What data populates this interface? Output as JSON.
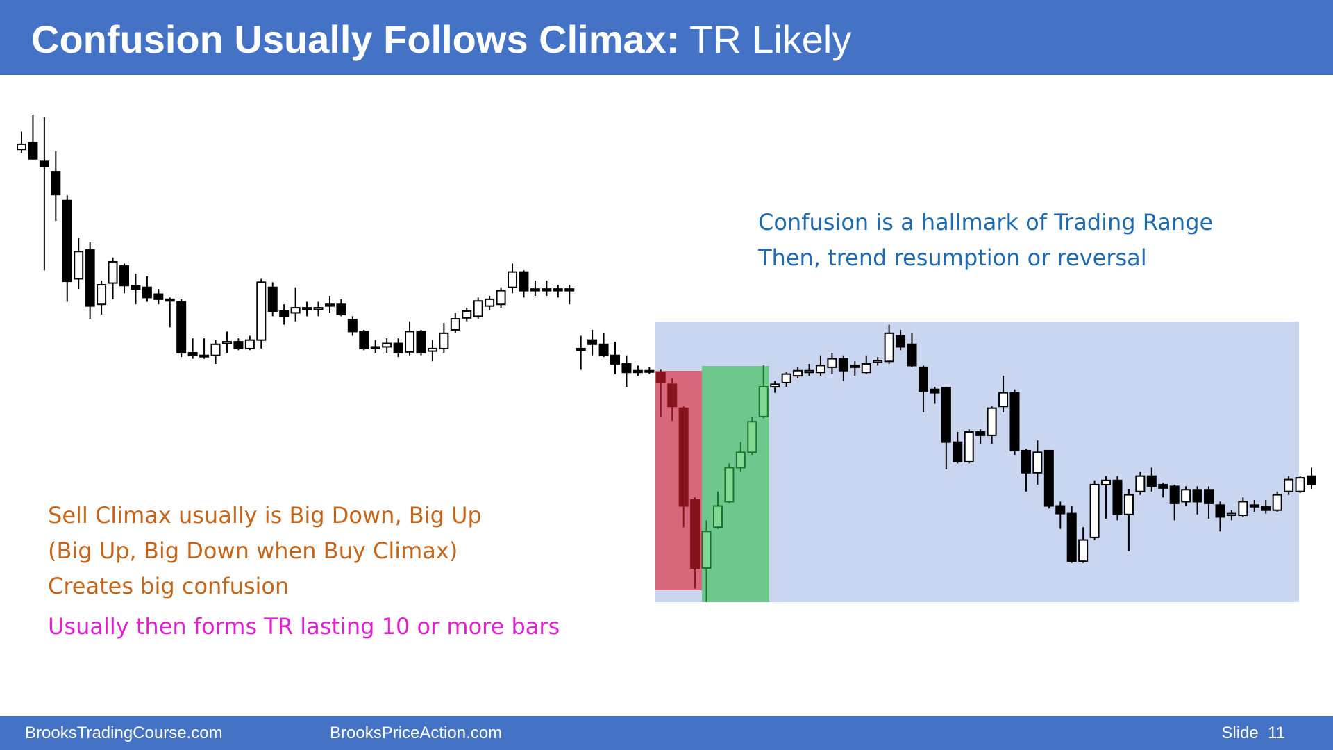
{
  "header": {
    "title_bold": "Confusion Usually Follows Climax:",
    "title_rest": "TR Likely"
  },
  "notes": {
    "range": [
      "Confusion is a hallmark of Trading Range",
      "Then, trend resumption or reversal"
    ],
    "climax": [
      "Sell Climax usually is Big Down, Big Up",
      "(Big Up, Big Down when Buy Climax)",
      "Creates big confusion"
    ],
    "result": "Usually then forms TR lasting 10 or more bars"
  },
  "footer": {
    "left": "BrooksTradingCourse.com",
    "center": "BrooksPriceAction.com",
    "slide": "Slide  11"
  },
  "chart_data": {
    "type": "candlestick",
    "open": [
      724,
      732,
      710,
      698,
      664,
      572,
      606,
      542,
      567,
      587,
      564,
      562,
      554,
      548,
      545,
      485,
      482,
      482,
      496,
      498,
      490,
      500,
      562,
      534,
      532,
      538,
      536,
      542,
      542,
      524,
      510,
      492,
      492,
      496,
      486,
      510,
      487,
      490,
      512,
      526,
      528,
      540,
      542,
      562,
      580,
      560,
      560,
      560,
      560,
      490,
      500,
      495,
      482,
      472,
      464,
      464,
      462,
      448,
      420,
      312,
      232,
      280,
      310,
      350,
      368,
      410,
      445,
      450,
      458,
      462,
      462,
      468,
      478,
      470,
      462,
      474,
      475,
      505,
      495,
      468,
      442,
      444,
      380,
      357,
      392,
      388,
      422,
      438,
      370,
      344,
      370,
      305,
      296,
      240,
      268,
      330,
      335,
      295,
      322,
      340,
      330,
      328,
      310,
      324,
      324,
      306,
      294,
      294,
      306,
      304,
      300,
      322,
      322,
      340
    ],
    "high": [
      745,
      765,
      762,
      722,
      670,
      620,
      615,
      570,
      597,
      590,
      578,
      575,
      560,
      550,
      548,
      502,
      502,
      500,
      510,
      502,
      505,
      572,
      568,
      542,
      562,
      545,
      545,
      552,
      548,
      528,
      512,
      500,
      502,
      502,
      522,
      512,
      500,
      520,
      532,
      538,
      550,
      552,
      562,
      590,
      582,
      570,
      570,
      565,
      565,
      505,
      512,
      508,
      498,
      482,
      470,
      468,
      465,
      455,
      422,
      315,
      288,
      322,
      355,
      380,
      410,
      470,
      452,
      462,
      468,
      472,
      482,
      485,
      482,
      475,
      482,
      480,
      518,
      512,
      508,
      470,
      445,
      445,
      392,
      395,
      395,
      422,
      458,
      442,
      372,
      382,
      370,
      310,
      305,
      280,
      335,
      340,
      340,
      325,
      345,
      350,
      332,
      330,
      328,
      328,
      328,
      310,
      300,
      315,
      312,
      312,
      322,
      340,
      340,
      350
    ],
    "low": [
      720,
      712,
      582,
      640,
      545,
      560,
      525,
      530,
      548,
      555,
      542,
      545,
      542,
      515,
      480,
      478,
      478,
      472,
      485,
      488,
      488,
      490,
      528,
      518,
      522,
      528,
      528,
      532,
      528,
      505,
      488,
      485,
      485,
      480,
      482,
      482,
      475,
      485,
      508,
      522,
      525,
      535,
      538,
      555,
      550,
      552,
      552,
      550,
      542,
      465,
      482,
      480,
      460,
      445,
      458,
      460,
      410,
      405,
      280,
      208,
      192,
      278,
      308,
      345,
      365,
      408,
      438,
      445,
      455,
      458,
      458,
      460,
      452,
      458,
      460,
      470,
      472,
      488,
      468,
      415,
      425,
      348,
      355,
      355,
      378,
      378,
      415,
      365,
      322,
      330,
      302,
      278,
      238,
      238,
      265,
      290,
      288,
      252,
      318,
      322,
      315,
      288,
      305,
      295,
      290,
      275,
      288,
      292,
      298,
      296,
      298,
      318,
      320,
      325
    ],
    "close": [
      730,
      713,
      704,
      671,
      569,
      604,
      540,
      565,
      592,
      564,
      560,
      550,
      548,
      546,
      485,
      482,
      482,
      495,
      498,
      490,
      500,
      568,
      534,
      528,
      538,
      536,
      538,
      540,
      530,
      510,
      490,
      490,
      496,
      485,
      510,
      485,
      490,
      508,
      525,
      534,
      546,
      548,
      558,
      580,
      558,
      558,
      558,
      558,
      558,
      488,
      495,
      482,
      472,
      462,
      462,
      463,
      450,
      422,
      305,
      232,
      275,
      305,
      350,
      368,
      404,
      445,
      448,
      460,
      464,
      464,
      470,
      478,
      464,
      468,
      472,
      476,
      508,
      492,
      470,
      440,
      438,
      380,
      357,
      392,
      388,
      420,
      438,
      370,
      344,
      368,
      305,
      296,
      240,
      265,
      330,
      335,
      295,
      318,
      340,
      328,
      326,
      308,
      324,
      310,
      308,
      292,
      296,
      310,
      304,
      300,
      318,
      336,
      338,
      330
    ]
  }
}
